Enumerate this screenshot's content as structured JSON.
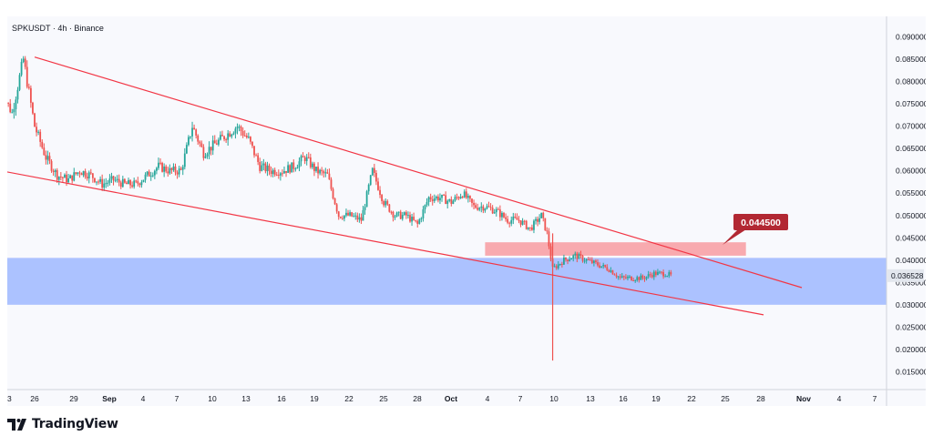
{
  "colors": {
    "bull": "#26a69a",
    "bear": "#ef5350",
    "channel": "#f23645",
    "support_zone": "#9fb8ff",
    "resistance_zone": "#f7a1a6",
    "callout": "#b22833",
    "price_tag": "#e3e7ee"
  },
  "header": {
    "title": "SPKUSDT · 4h · Binance"
  },
  "callout": {
    "label": "0.044500"
  },
  "price_tag": {
    "label": "0.036528"
  },
  "brand": {
    "name": "TradingView",
    "logo_icon": "tradingview-logo-icon"
  },
  "chart_data": {
    "type": "candlestick",
    "symbol": "SPKUSDT",
    "interval": "4h",
    "exchange": "Binance",
    "ylim": [
      0.011,
      0.094
    ],
    "y_ticks": [
      "0.090000",
      "0.085000",
      "0.080000",
      "0.075000",
      "0.070000",
      "0.065000",
      "0.060000",
      "0.055000",
      "0.050000",
      "0.045000",
      "0.040000",
      "0.035000",
      "0.030000",
      "0.025000",
      "0.020000",
      "0.015000"
    ],
    "x_ticks": [
      "3",
      "26",
      "29",
      "Sep",
      "4",
      "7",
      "10",
      "13",
      "16",
      "19",
      "22",
      "25",
      "28",
      "Oct",
      "4",
      "7",
      "10",
      "13",
      "16",
      "19",
      "22",
      "25",
      "28",
      "Nov",
      "4",
      "7"
    ],
    "current_price": 0.036528,
    "close_path": [
      [
        "Aug 23",
        0.078
      ],
      [
        "Aug 24",
        0.073
      ],
      [
        "Aug 25",
        0.085
      ],
      [
        "Aug 26",
        0.07
      ],
      [
        "Aug 27",
        0.063
      ],
      [
        "Aug 28",
        0.059
      ],
      [
        "Aug 29",
        0.058
      ],
      [
        "Aug 30",
        0.06
      ],
      [
        "Aug 31",
        0.059
      ],
      [
        "Sep 1",
        0.057
      ],
      [
        "Sep 2",
        0.058
      ],
      [
        "Sep 3",
        0.057
      ],
      [
        "Sep 4",
        0.057
      ],
      [
        "Sep 5",
        0.059
      ],
      [
        "Sep 6",
        0.061
      ],
      [
        "Sep 7",
        0.06
      ],
      [
        "Sep 8",
        0.06
      ],
      [
        "Sep 9",
        0.07
      ],
      [
        "Sep 10",
        0.064
      ],
      [
        "Sep 11",
        0.066
      ],
      [
        "Sep 12",
        0.068
      ],
      [
        "Sep 13",
        0.07
      ],
      [
        "Sep 14",
        0.067
      ],
      [
        "Sep 15",
        0.061
      ],
      [
        "Sep 16",
        0.06
      ],
      [
        "Sep 17",
        0.06
      ],
      [
        "Sep 18",
        0.061
      ],
      [
        "Sep 19",
        0.063
      ],
      [
        "Sep 20",
        0.06
      ],
      [
        "Sep 21",
        0.059
      ],
      [
        "Sep 22",
        0.05
      ],
      [
        "Sep 23",
        0.05
      ],
      [
        "Sep 24",
        0.049
      ],
      [
        "Sep 25",
        0.06
      ],
      [
        "Sep 26",
        0.053
      ],
      [
        "Sep 27",
        0.05
      ],
      [
        "Sep 28",
        0.05
      ],
      [
        "Sep 29",
        0.048
      ],
      [
        "Sep 30",
        0.054
      ],
      [
        "Oct 1",
        0.054
      ],
      [
        "Oct 2",
        0.053
      ],
      [
        "Oct 3",
        0.055
      ],
      [
        "Oct 4",
        0.052
      ],
      [
        "Oct 5",
        0.052
      ],
      [
        "Oct 6",
        0.051
      ],
      [
        "Oct 7",
        0.049
      ],
      [
        "Oct 8",
        0.049
      ],
      [
        "Oct 9",
        0.047
      ],
      [
        "Oct 10",
        0.05
      ],
      [
        "Oct 10.5",
        0.046
      ],
      [
        "Oct 11",
        0.038
      ],
      [
        "Oct 12",
        0.04
      ],
      [
        "Oct 13",
        0.041
      ],
      [
        "Oct 14",
        0.04
      ],
      [
        "Oct 15",
        0.039
      ],
      [
        "Oct 16",
        0.038
      ],
      [
        "Oct 17",
        0.036
      ],
      [
        "Oct 18",
        0.036
      ],
      [
        "Oct 19",
        0.036
      ],
      [
        "Oct 20",
        0.037
      ],
      [
        "Oct 21",
        0.037
      ],
      [
        "Oct 21.5",
        0.0365
      ]
    ],
    "spikes": [
      {
        "date": "Oct 11",
        "low": 0.0175
      }
    ],
    "channel": {
      "upper": [
        [
          "Aug 26",
          0.0855
        ],
        [
          "Oct 25",
          0.04
        ]
      ],
      "lower": [
        [
          "Aug 22",
          0.0605
        ],
        [
          "Oct 25",
          0.03
        ]
      ]
    },
    "zones": {
      "support": {
        "from": 0.03,
        "to": 0.0405
      },
      "resistance": {
        "from": 0.041,
        "to": 0.044,
        "start": "Oct 5"
      }
    }
  }
}
